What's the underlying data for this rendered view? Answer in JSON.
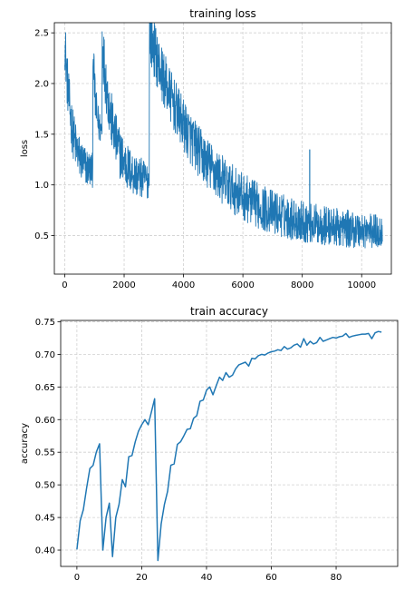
{
  "chart_data": [
    {
      "type": "line",
      "title": "training loss",
      "xlabel": "",
      "ylabel": "loss",
      "xlim": [
        -350,
        11000
      ],
      "ylim": [
        0.12,
        2.6
      ],
      "xticks": [
        0,
        2000,
        4000,
        6000,
        8000,
        10000
      ],
      "xtick_labels": [
        "0",
        "2000",
        "4000",
        "6000",
        "8000",
        "10000"
      ],
      "yticks": [
        0.5,
        1.0,
        1.5,
        2.0,
        2.5
      ],
      "ytick_labels": [
        "0.5",
        "1.0",
        "1.5",
        "2.0",
        "2.5"
      ],
      "grid": true,
      "color": "#1f77b4",
      "segments": [
        {
          "x0": 0,
          "x1": 950,
          "start": 2.45,
          "end": 1.15,
          "noise": 0.28
        },
        {
          "x0": 950,
          "x1": 1260,
          "start": 2.4,
          "end": 1.55,
          "noise": 0.25
        },
        {
          "x0": 1260,
          "x1": 2850,
          "start": 2.43,
          "end": 1.05,
          "noise": 0.3
        },
        {
          "x0": 2850,
          "x1": 10700,
          "start": 2.5,
          "end": 0.55,
          "noise": 0.28
        }
      ],
      "spikes": [
        {
          "x": 8250,
          "y": 1.35
        }
      ]
    },
    {
      "type": "line",
      "title": "train accuracy",
      "xlabel": "",
      "ylabel": "accuracy",
      "xlim": [
        -5,
        99
      ],
      "ylim": [
        0.375,
        0.752
      ],
      "xticks": [
        0,
        20,
        40,
        60,
        80
      ],
      "xtick_labels": [
        "0",
        "20",
        "40",
        "60",
        "80"
      ],
      "yticks": [
        0.4,
        0.45,
        0.5,
        0.55,
        0.6,
        0.65,
        0.7,
        0.75
      ],
      "ytick_labels": [
        "0.40",
        "0.45",
        "0.50",
        "0.55",
        "0.60",
        "0.65",
        "0.70",
        "0.75"
      ],
      "grid": true,
      "color": "#1f77b4",
      "x": [
        0,
        1,
        2,
        3,
        4,
        5,
        6,
        7,
        8,
        9,
        10,
        11,
        12,
        13,
        14,
        15,
        16,
        17,
        18,
        19,
        20,
        21,
        22,
        23,
        24,
        25,
        26,
        27,
        28,
        29,
        30,
        31,
        32,
        33,
        34,
        35,
        36,
        37,
        38,
        39,
        40,
        41,
        42,
        43,
        44,
        45,
        46,
        47,
        48,
        49,
        50,
        51,
        52,
        53,
        54,
        55,
        56,
        57,
        58,
        59,
        60,
        61,
        62,
        63,
        64,
        65,
        66,
        67,
        68,
        69,
        70,
        71,
        72,
        73,
        74,
        75,
        76,
        77,
        78,
        79,
        80,
        81,
        82,
        83,
        84,
        85,
        86,
        87,
        88,
        89,
        90,
        91,
        92,
        93,
        94
      ],
      "y": [
        0.401,
        0.445,
        0.462,
        0.495,
        0.525,
        0.53,
        0.55,
        0.563,
        0.4,
        0.45,
        0.472,
        0.39,
        0.45,
        0.47,
        0.508,
        0.497,
        0.543,
        0.545,
        0.566,
        0.582,
        0.592,
        0.6,
        0.592,
        0.612,
        0.632,
        0.384,
        0.44,
        0.47,
        0.49,
        0.53,
        0.532,
        0.562,
        0.566,
        0.575,
        0.585,
        0.586,
        0.602,
        0.606,
        0.628,
        0.63,
        0.645,
        0.65,
        0.638,
        0.652,
        0.665,
        0.66,
        0.672,
        0.665,
        0.668,
        0.678,
        0.684,
        0.686,
        0.688,
        0.682,
        0.694,
        0.693,
        0.698,
        0.7,
        0.699,
        0.702,
        0.704,
        0.705,
        0.707,
        0.706,
        0.712,
        0.708,
        0.71,
        0.714,
        0.716,
        0.711,
        0.724,
        0.714,
        0.72,
        0.716,
        0.718,
        0.726,
        0.72,
        0.722,
        0.724,
        0.726,
        0.725,
        0.727,
        0.728,
        0.732,
        0.726,
        0.728,
        0.729,
        0.73,
        0.731,
        0.731,
        0.732,
        0.724,
        0.733,
        0.735,
        0.734
      ]
    }
  ]
}
